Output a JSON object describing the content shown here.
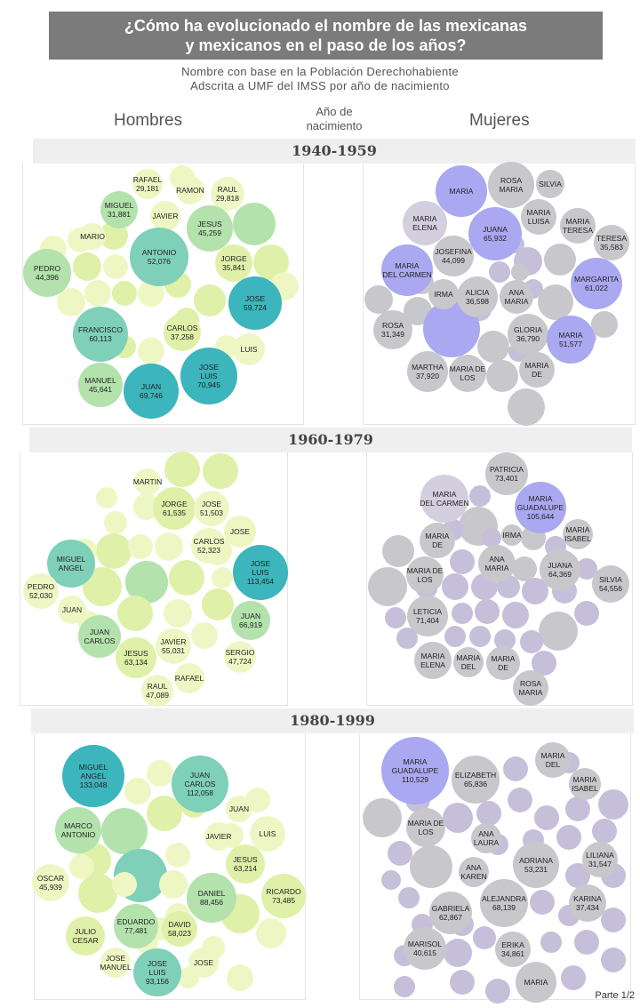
{
  "title_line1": "¿Cómo ha evolucionado el nombre de las mexicanas",
  "title_line2": "y mexicanos en el paso de los años?",
  "subtitle_line1": "Nombre  con  base en   la Población  Derechohabiente",
  "subtitle_line2": "Adscrita a UMF del IMSS por año de nacimiento",
  "header_left": "Hombres",
  "header_mid_line1": "Año de",
  "header_mid_line2": "nacimiento",
  "header_right": "Mujeres",
  "footer": "Parte 1/2",
  "colors": {
    "male_light": "#eef7c4",
    "male_mid": "#dff0a8",
    "male_green": "#b3e2ad",
    "male_teal": "#7fd0b8",
    "male_dark": "#3cb5bc",
    "female_light": "#d3cfdf",
    "female_gray": "#c8c8cc",
    "female_purple": "#c6bfda",
    "female_blue": "#aaa8f0"
  },
  "chart_data": {
    "type": "bubble",
    "periods": [
      {
        "period": "1940-1959",
        "hombres": [
          {
            "label": "RAFAEL",
            "value": "29,181",
            "count": 29181
          },
          {
            "label": "RAMON",
            "value": ""
          },
          {
            "label": "RAUL",
            "value": "29,818",
            "count": 29818
          },
          {
            "label": "MIGUEL",
            "value": "31,881",
            "count": 31881
          },
          {
            "label": "JAVIER",
            "value": ""
          },
          {
            "label": "JESUS",
            "value": "45,259",
            "count": 45259
          },
          {
            "label": "MARIO",
            "value": ""
          },
          {
            "label": "ANTONIO",
            "value": "52,076",
            "count": 52076
          },
          {
            "label": "JORGE",
            "value": "35,841",
            "count": 35841
          },
          {
            "label": "PEDRO",
            "value": "44,396",
            "count": 44396
          },
          {
            "label": "JOSE",
            "value": "59,724",
            "count": 59724
          },
          {
            "label": "FRANCISCO",
            "value": "60,113",
            "count": 60113
          },
          {
            "label": "CARLOS",
            "value": "37,258",
            "count": 37258
          },
          {
            "label": "LUIS",
            "value": ""
          },
          {
            "label": "MANUEL",
            "value": "45,641",
            "count": 45641
          },
          {
            "label": "JOSE LUIS",
            "value": "70,945",
            "count": 70945
          },
          {
            "label": "JUAN",
            "value": "69,746",
            "count": 69746
          }
        ],
        "mujeres": [
          {
            "label": "MARIA",
            "value": ""
          },
          {
            "label": "ROSA MARIA",
            "value": ""
          },
          {
            "label": "SILVIA",
            "value": ""
          },
          {
            "label": "MARIA ELENA",
            "value": ""
          },
          {
            "label": "JUANA",
            "value": "65,932",
            "count": 65932
          },
          {
            "label": "MARIA LUISA",
            "value": ""
          },
          {
            "label": "MARIA TERESA",
            "value": ""
          },
          {
            "label": "TERESA",
            "value": "35,583",
            "count": 35583
          },
          {
            "label": "JOSEFINA",
            "value": "44,099",
            "count": 44099
          },
          {
            "label": "MARIA DEL CARMEN",
            "value": ""
          },
          {
            "label": "MARGARITA",
            "value": "61,022",
            "count": 61022
          },
          {
            "label": "IRMA",
            "value": ""
          },
          {
            "label": "ALICIA",
            "value": "36,598",
            "count": 36598
          },
          {
            "label": "ANA MARIA",
            "value": ""
          },
          {
            "label": "ROSA",
            "value": "31,349",
            "count": 31349
          },
          {
            "label": "GLORIA",
            "value": "36,790",
            "count": 36790
          },
          {
            "label": "MARIA",
            "value": "51,577",
            "count": 51577
          },
          {
            "label": "MARTHA",
            "value": "37,920",
            "count": 37920
          },
          {
            "label": "MARIA DE LOS",
            "value": ""
          },
          {
            "label": "MARIA DE",
            "value": ""
          }
        ]
      },
      {
        "period": "1960-1979",
        "hombres": [
          {
            "label": "MARTIN",
            "value": ""
          },
          {
            "label": "JORGE",
            "value": "61,535",
            "count": 61535
          },
          {
            "label": "JOSE",
            "value": "51,503",
            "count": 51503
          },
          {
            "label": "JOSE",
            "value": ""
          },
          {
            "label": "CARLOS",
            "value": "52,323",
            "count": 52323
          },
          {
            "label": "MIGUEL ANGEL",
            "value": ""
          },
          {
            "label": "JOSE LUIS",
            "value": "113,454",
            "count": 113454
          },
          {
            "label": "PEDRO",
            "value": "52,030",
            "count": 52030
          },
          {
            "label": "JUAN",
            "value": ""
          },
          {
            "label": "JUAN",
            "value": "66,919",
            "count": 66919
          },
          {
            "label": "JUAN CARLOS",
            "value": ""
          },
          {
            "label": "JAVIER",
            "value": "55,031",
            "count": 55031
          },
          {
            "label": "SERGIO",
            "value": "47,724",
            "count": 47724
          },
          {
            "label": "JESUS",
            "value": "63,134",
            "count": 63134
          },
          {
            "label": "RAFAEL",
            "value": ""
          },
          {
            "label": "RAUL",
            "value": "47,089",
            "count": 47089
          }
        ],
        "mujeres": [
          {
            "label": "PATRICIA",
            "value": "73,401",
            "count": 73401
          },
          {
            "label": "MARIA DEL CARMEN",
            "value": ""
          },
          {
            "label": "MARIA GUADALUPE",
            "value": "105,644",
            "count": 105644
          },
          {
            "label": "MARIA DE",
            "value": ""
          },
          {
            "label": "IRMA",
            "value": ""
          },
          {
            "label": "MARIA ISABEL",
            "value": ""
          },
          {
            "label": "ANA MARIA",
            "value": ""
          },
          {
            "label": "MARIA DE LOS",
            "value": ""
          },
          {
            "label": "JUANA",
            "value": "64,369",
            "count": 64369
          },
          {
            "label": "SILVIA",
            "value": "54,556",
            "count": 54556
          },
          {
            "label": "LETICIA",
            "value": "71,404",
            "count": 71404
          },
          {
            "label": "MARIA ELENA",
            "value": ""
          },
          {
            "label": "MARIA DEL",
            "value": ""
          },
          {
            "label": "MARIA DE",
            "value": ""
          },
          {
            "label": "ROSA MARIA",
            "value": ""
          }
        ]
      },
      {
        "period": "1980-1999",
        "hombres": [
          {
            "label": "MIGUEL ANGEL",
            "value": "133,048",
            "count": 133048
          },
          {
            "label": "JUAN CARLOS",
            "value": "112,058",
            "count": 112058
          },
          {
            "label": "JUAN",
            "value": ""
          },
          {
            "label": "MARCO ANTONIO",
            "value": ""
          },
          {
            "label": "JAVIER",
            "value": ""
          },
          {
            "label": "LUIS",
            "value": ""
          },
          {
            "label": "JESUS",
            "value": "63,214",
            "count": 63214
          },
          {
            "label": "OSCAR",
            "value": "45,939",
            "count": 45939
          },
          {
            "label": "RICARDO",
            "value": "73,485",
            "count": 73485
          },
          {
            "label": "DANIEL",
            "value": "88,456",
            "count": 88456
          },
          {
            "label": "EDUARDO",
            "value": "77,481",
            "count": 77481
          },
          {
            "label": "DAVID",
            "value": "58,023",
            "count": 58023
          },
          {
            "label": "JULIO CESAR",
            "value": ""
          },
          {
            "label": "JOSE MANUEL",
            "value": ""
          },
          {
            "label": "JOSE LUIS",
            "value": "93,156",
            "count": 93156
          },
          {
            "label": "JOSE",
            "value": ""
          }
        ],
        "mujeres": [
          {
            "label": "MARIA DEL",
            "value": ""
          },
          {
            "label": "MARIA GUADALUPE",
            "value": "110,529",
            "count": 110529
          },
          {
            "label": "ELIZABETH",
            "value": "65,836",
            "count": 65836
          },
          {
            "label": "MARIA ISABEL",
            "value": ""
          },
          {
            "label": "MARIA DE LOS",
            "value": ""
          },
          {
            "label": "ANA LAURA",
            "value": ""
          },
          {
            "label": "LILIANA",
            "value": "31,547",
            "count": 31547
          },
          {
            "label": "ANA KAREN",
            "value": ""
          },
          {
            "label": "ADRIANA",
            "value": "53,231",
            "count": 53231
          },
          {
            "label": "ALEJANDRA",
            "value": "68,139",
            "count": 68139
          },
          {
            "label": "KARINA",
            "value": "37,434",
            "count": 37434
          },
          {
            "label": "GABRIELA",
            "value": "62,867",
            "count": 62867
          },
          {
            "label": "MARISOL",
            "value": "40,615",
            "count": 40615
          },
          {
            "label": "ERIKA",
            "value": "34,861",
            "count": 34861
          },
          {
            "label": "MARIA",
            "value": ""
          }
        ]
      }
    ]
  }
}
